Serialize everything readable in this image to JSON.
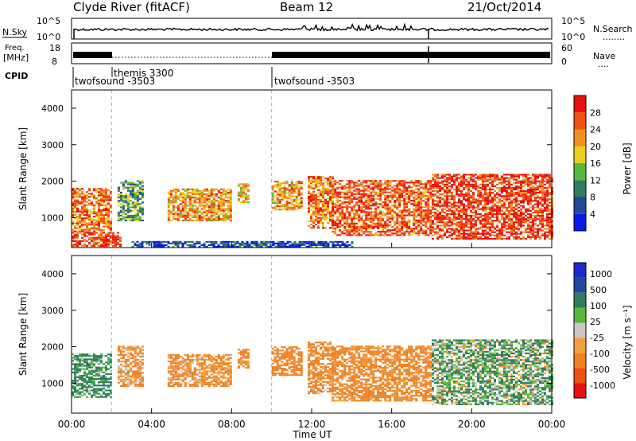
{
  "header": {
    "station": "Clyde River (fitACF)",
    "beam": "Beam 12",
    "date": "21/Oct/2014"
  },
  "nsky_panel": {
    "left_label": "N.Sky",
    "left_ticks": [
      "10^5",
      "10^0"
    ],
    "right_ticks": [
      "10^5",
      "10^0"
    ],
    "right_label": "N.Search",
    "right_label_line": "........"
  },
  "freq_panel": {
    "left_label_line1": "Freq.",
    "left_label_line2": "[MHz]",
    "left_ticks": [
      "18",
      "8"
    ],
    "right_ticks": [
      "60",
      "0"
    ],
    "right_label": "Nave",
    "right_label_line": "...."
  },
  "cpid": {
    "label": "CPID",
    "segments": [
      {
        "start_hour": 0.0,
        "name": "twofsound -3503"
      },
      {
        "start_hour": 2.0,
        "name": "themis 3300"
      },
      {
        "start_hour": 10.0,
        "name": "twofsound -3503"
      }
    ]
  },
  "colors": {
    "power_scale": [
      "#0a18e8",
      "#22489a",
      "#2f7d5e",
      "#58b83c",
      "#e8d020",
      "#f09020",
      "#f05010",
      "#e81010"
    ],
    "velocity_scale": [
      "#e81010",
      "#f05010",
      "#f08020",
      "#f0a040",
      "#c8c8c8",
      "#58b83c",
      "#2f7d5e",
      "#22489a",
      "#1a2ad0"
    ]
  },
  "chart_data": [
    {
      "type": "heatmap",
      "name": "power",
      "ylabel": "Slant Range [km]",
      "colorbar_label": "Power [dB]",
      "colorbar_ticks": [
        "28",
        "24",
        "20",
        "16",
        "12",
        "8",
        "4"
      ],
      "colorbar_range": [
        0,
        32
      ],
      "x_ticks": [
        "00:00",
        "04:00",
        "08:00",
        "12:00",
        "16:00",
        "20:00",
        "00:00"
      ],
      "xlim_hours": [
        0,
        24
      ],
      "y_ticks": [
        "4000",
        "3000",
        "2000",
        "1000"
      ],
      "ylim_km": [
        180,
        4500
      ],
      "echo_regions": [
        {
          "start": 0.0,
          "end": 2.0,
          "lo": 600,
          "hi": 1800,
          "value": 24
        },
        {
          "start": 0.0,
          "end": 2.5,
          "lo": 200,
          "hi": 600,
          "value": 28
        },
        {
          "start": 2.3,
          "end": 3.5,
          "lo": 900,
          "hi": 2000,
          "value": 12
        },
        {
          "start": 4.8,
          "end": 7.9,
          "lo": 900,
          "hi": 1800,
          "value": 22
        },
        {
          "start": 8.3,
          "end": 8.8,
          "lo": 1400,
          "hi": 1900,
          "value": 20
        },
        {
          "start": 10.0,
          "end": 11.5,
          "lo": 1200,
          "hi": 2000,
          "value": 22
        },
        {
          "start": 11.8,
          "end": 13.0,
          "lo": 700,
          "hi": 2100,
          "value": 24
        },
        {
          "start": 13.0,
          "end": 18.0,
          "lo": 500,
          "hi": 2000,
          "value": 26
        },
        {
          "start": 18.0,
          "end": 24.0,
          "lo": 400,
          "hi": 2200,
          "value": 28
        },
        {
          "start": 3.0,
          "end": 14.0,
          "lo": 180,
          "hi": 350,
          "value": 6
        }
      ]
    },
    {
      "type": "heatmap",
      "name": "velocity",
      "ylabel": "Slant Range [km]",
      "colorbar_label": "Velocity [m s⁻¹]",
      "colorbar_ticks": [
        "1000",
        "500",
        "100",
        "25",
        "-25",
        "-100",
        "-500",
        "-1000"
      ],
      "x_ticks": [
        "00:00",
        "04:00",
        "08:00",
        "12:00",
        "16:00",
        "20:00",
        "00:00"
      ],
      "xlabel": "Time UT",
      "xlim_hours": [
        0,
        24
      ],
      "y_ticks": [
        "4000",
        "3000",
        "2000",
        "1000"
      ],
      "ylim_km": [
        180,
        4500
      ],
      "echo_regions": [
        {
          "start": 0.0,
          "end": 2.0,
          "lo": 600,
          "hi": 1800,
          "value": 150
        },
        {
          "start": 2.3,
          "end": 3.5,
          "lo": 900,
          "hi": 2000,
          "value": -120
        },
        {
          "start": 4.8,
          "end": 7.9,
          "lo": 900,
          "hi": 1800,
          "value": -150
        },
        {
          "start": 8.3,
          "end": 8.8,
          "lo": 1400,
          "hi": 1900,
          "value": -200
        },
        {
          "start": 10.0,
          "end": 11.5,
          "lo": 1200,
          "hi": 2000,
          "value": -300
        },
        {
          "start": 11.8,
          "end": 13.0,
          "lo": 700,
          "hi": 2100,
          "value": -150
        },
        {
          "start": 13.0,
          "end": 18.0,
          "lo": 500,
          "hi": 2000,
          "value": -200
        },
        {
          "start": 18.0,
          "end": 24.0,
          "lo": 400,
          "hi": 2200,
          "value": 80
        }
      ]
    }
  ]
}
